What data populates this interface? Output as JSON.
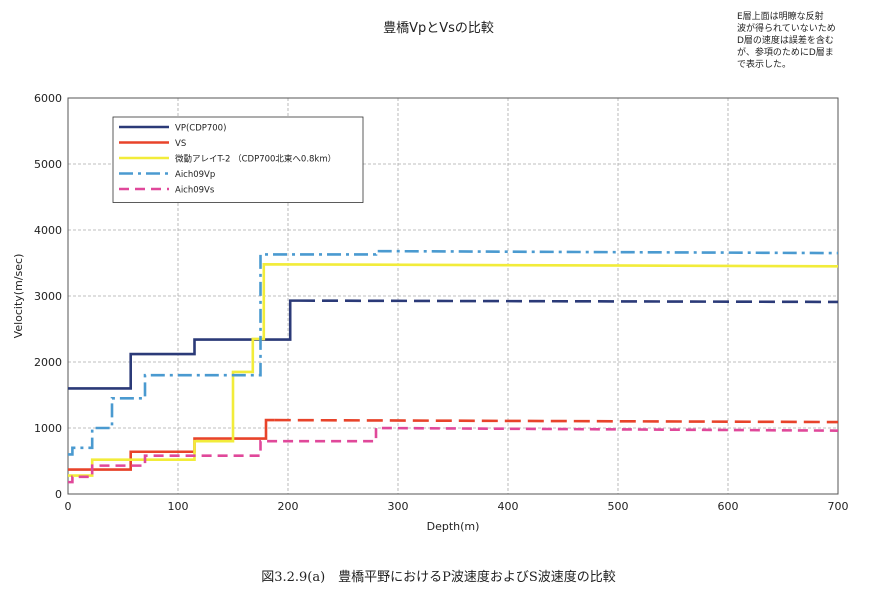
{
  "chart_data": {
    "type": "line",
    "title": "豊橋VpとVsの比較",
    "note": "E層上面は明瞭な反射\n波が得られていないため\nD層の速度は誤差を含む\nが、参項のためにD層ま\nで表示した。",
    "caption": "図3.2.9(a)　豊橋平野におけるP波速度およびS波速度の比較",
    "xlabel": "Depth(m)",
    "ylabel": "Velocity(m/sec)",
    "xlim": [
      0,
      700
    ],
    "ylim": [
      0,
      6000
    ],
    "xticks": [
      "0",
      "100",
      "200",
      "300",
      "400",
      "500",
      "600",
      "700"
    ],
    "yticks": [
      "0",
      "1000",
      "2000",
      "3000",
      "4000",
      "5000",
      "6000"
    ],
    "grid": true,
    "legend_position": "top-left",
    "series": [
      {
        "name": "VP(CDP700)",
        "color": "#2b3a78",
        "style": "solid-then-dashed",
        "x": [
          0,
          57,
          57,
          115,
          115,
          202,
          202,
          700
        ],
        "y": [
          1600,
          1600,
          2120,
          2120,
          2340,
          2340,
          2930,
          2910
        ],
        "dash_from_x": 210
      },
      {
        "name": "VS",
        "color": "#e8432a",
        "style": "solid-then-dashed",
        "x": [
          0,
          57,
          57,
          115,
          115,
          180,
          180,
          700
        ],
        "y": [
          370,
          370,
          640,
          640,
          840,
          840,
          1120,
          1090
        ],
        "dash_from_x": 188
      },
      {
        "name": "微動アレイT-2 （CDP700北東へ0.8km）",
        "color": "#f2ec3a",
        "style": "solid",
        "x": [
          0,
          22,
          22,
          115,
          115,
          150,
          150,
          168,
          168,
          178,
          178,
          700
        ],
        "y": [
          280,
          280,
          520,
          520,
          800,
          800,
          1850,
          1850,
          2350,
          2350,
          3480,
          3450
        ]
      },
      {
        "name": "Aich09Vp",
        "color": "#4a9ad0",
        "style": "dashdot",
        "x": [
          0,
          4,
          4,
          22,
          22,
          40,
          40,
          70,
          70,
          175,
          175,
          280,
          280,
          700
        ],
        "y": [
          600,
          600,
          700,
          700,
          1000,
          1000,
          1450,
          1450,
          1800,
          1800,
          3630,
          3630,
          3680,
          3650
        ]
      },
      {
        "name": "Aich09Vs",
        "color": "#e0489a",
        "style": "dashed",
        "x": [
          0,
          4,
          4,
          22,
          22,
          70,
          70,
          175,
          175,
          280,
          280,
          700
        ],
        "y": [
          180,
          180,
          260,
          260,
          430,
          430,
          580,
          580,
          800,
          800,
          1000,
          960
        ]
      }
    ]
  }
}
